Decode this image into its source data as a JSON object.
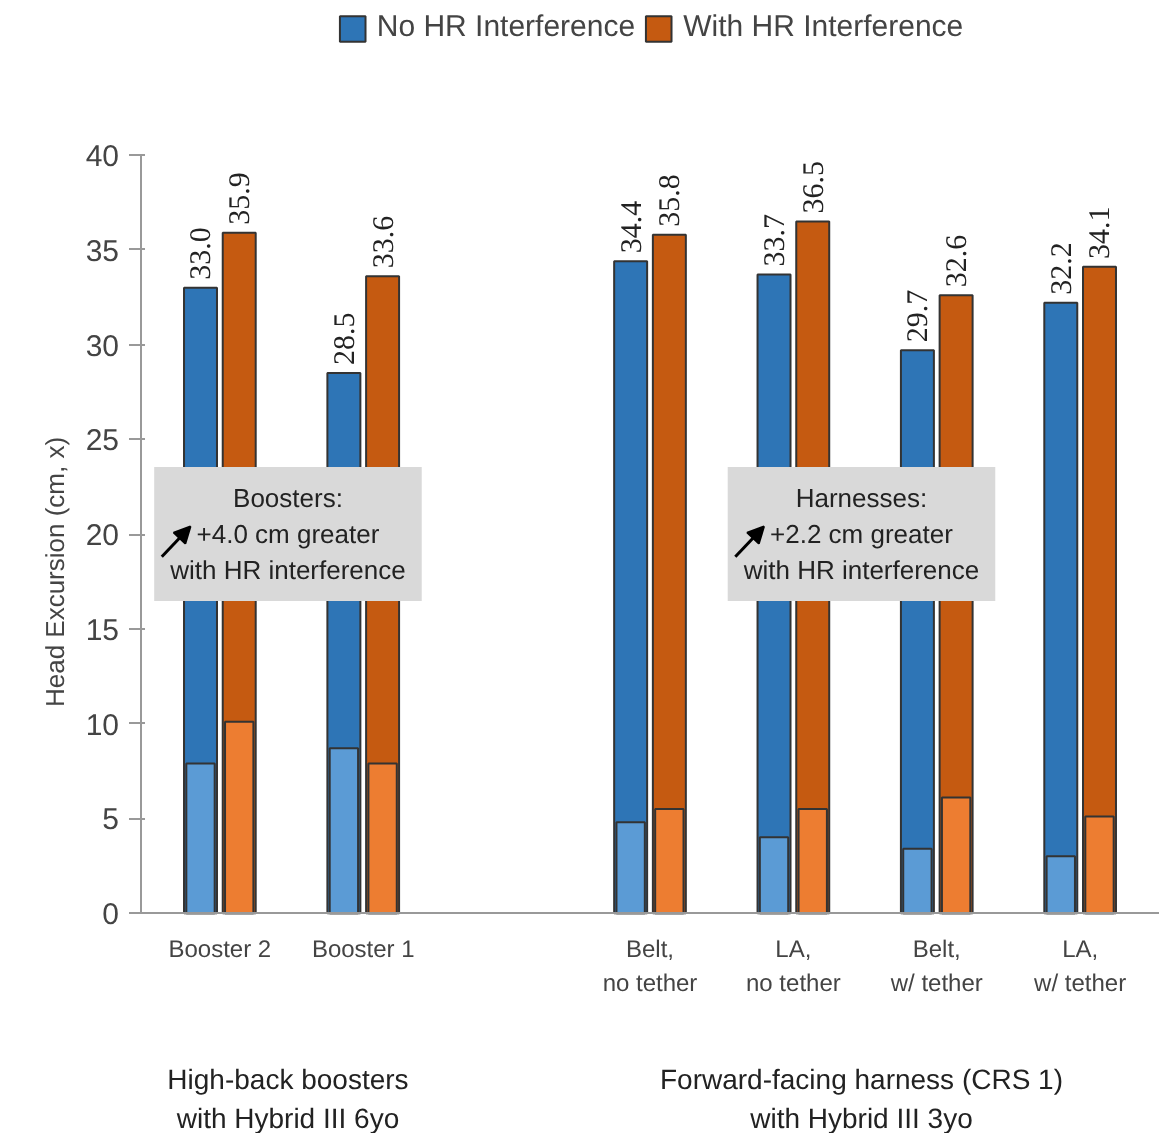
{
  "chart_data": {
    "type": "bar",
    "ylabel": "Head Excursion (cm, x)",
    "categories": [
      "Booster 2",
      "Booster 1",
      null,
      "Belt,\nno tether",
      "LA,\nno tether",
      "Belt,\nw/ tether",
      "LA,\nw/ tether"
    ],
    "series": [
      {
        "name": "No HR Interference",
        "color": "#2e75b6",
        "values": [
          33.0,
          28.5,
          null,
          34.4,
          33.7,
          29.7,
          32.2
        ]
      },
      {
        "color": "#5b9bd5",
        "values": [
          7.9,
          8.7,
          null,
          4.8,
          4.0,
          3.4,
          3.0
        ]
      },
      {
        "name": "With HR Interference",
        "color": "#c55a11",
        "values": [
          35.9,
          33.6,
          null,
          35.8,
          36.5,
          32.6,
          34.1
        ]
      },
      {
        "color": "#ed7d31",
        "values": [
          10.1,
          7.9,
          null,
          5.5,
          5.5,
          6.1,
          5.1
        ]
      }
    ],
    "value_labels": [
      [
        "33.0",
        "28.5",
        null,
        "34.4",
        "33.7",
        "29.7",
        "32.2"
      ],
      null,
      [
        "35.9",
        "33.6",
        null,
        "35.8",
        "36.5",
        "32.6",
        "34.1"
      ],
      null
    ],
    "ylim": [
      0,
      40
    ],
    "yticks": [
      0,
      5,
      10,
      15,
      20,
      25,
      30,
      35,
      40
    ],
    "legend": "top",
    "annotations": [
      "Boosters:\n+4.0 cm greater\nwith HR interference",
      "Harnesses:\n+2.2 cm greater\nwith HR interference",
      "High-back boosters\nwith Hybrid III 6yo",
      "Forward-facing harness (CRS 1)\nwith Hybrid III 3yo"
    ]
  }
}
